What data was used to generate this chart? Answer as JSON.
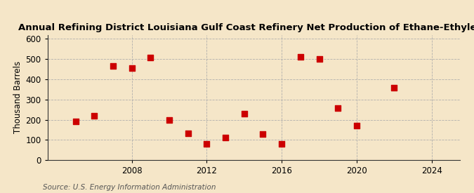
{
  "title": "Annual Refining District Louisiana Gulf Coast Refinery Net Production of Ethane-Ethylene",
  "ylabel": "Thousand Barrels",
  "source": "Source: U.S. Energy Information Administration",
  "years": [
    2005,
    2006,
    2007,
    2008,
    2009,
    2010,
    2011,
    2012,
    2013,
    2014,
    2015,
    2016,
    2017,
    2018,
    2019,
    2020,
    2022
  ],
  "values": [
    190,
    220,
    465,
    455,
    507,
    197,
    132,
    82,
    112,
    230,
    130,
    82,
    510,
    500,
    258,
    172,
    358
  ],
  "marker_color": "#CC0000",
  "marker_size": 36,
  "background_color": "#F5E6C8",
  "grid_color": "#AAAAAA",
  "xlim": [
    2003.5,
    2025.5
  ],
  "ylim": [
    0,
    620
  ],
  "xticks": [
    2008,
    2012,
    2016,
    2020,
    2024
  ],
  "yticks": [
    0,
    100,
    200,
    300,
    400,
    500,
    600
  ],
  "title_fontsize": 9.5,
  "label_fontsize": 8.5,
  "source_fontsize": 7.5
}
